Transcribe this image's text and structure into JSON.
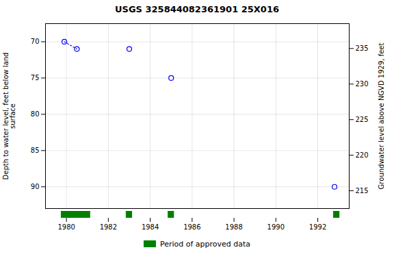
{
  "chart_data": {
    "type": "scatter",
    "title": "USGS 325844082361901 25X016",
    "series": [
      {
        "type": "scatter",
        "marker": "circle",
        "color": "blue",
        "x": [
          1979.9,
          1980.5,
          1983.0,
          1985.0,
          1992.8
        ],
        "values": [
          70.0,
          71.0,
          71.0,
          75.0,
          90.0
        ]
      },
      {
        "type": "line",
        "line_style": "dotted",
        "color": "blue",
        "x": [
          1979.9,
          1980.5
        ],
        "values": [
          70.0,
          71.0
        ]
      }
    ],
    "approved_periods": {
      "name": "Period of approved data",
      "color": "#008000",
      "ranges": [
        [
          1979.75,
          1981.15
        ],
        [
          1982.85,
          1983.15
        ],
        [
          1984.85,
          1985.15
        ],
        [
          1992.75,
          1993.05
        ]
      ]
    },
    "xlim": [
      1979.0,
      1993.5
    ],
    "xticks": [
      1980,
      1982,
      1984,
      1986,
      1988,
      1990,
      1992
    ],
    "ylim": [
      93.0,
      67.5
    ],
    "yticks": [
      70,
      75,
      80,
      85,
      90
    ],
    "ylabel": "Depth to water level, feet below land\nsurface",
    "y2lim": [
      212.5,
      238.5
    ],
    "y2ticks": [
      235,
      230,
      225,
      220,
      215
    ],
    "y2label": "Groundwater level above NGVD 1929, feet",
    "grid": true,
    "legend": "bottom"
  }
}
